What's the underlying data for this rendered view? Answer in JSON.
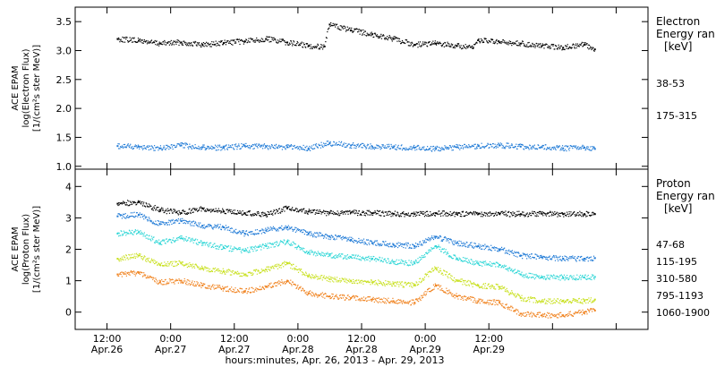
{
  "chart_data": [
    {
      "type": "scatter",
      "panel": "electron",
      "ylabel_lines": [
        "ACE EPAM",
        "log(Electron Flux)",
        "[1/(cm²s ster MeV)]"
      ],
      "ylim": [
        0.95,
        3.75
      ],
      "yticks": [
        1.0,
        1.5,
        2.0,
        2.5,
        3.0,
        3.5
      ],
      "yticklabels": [
        "1.0",
        "1.5",
        "2.0",
        "2.5",
        "3.0",
        "3.5"
      ],
      "legend": {
        "title_lines": [
          "Electron",
          "Energy ran",
          "[keV]"
        ],
        "placement": "right"
      },
      "series": [
        {
          "name": "38-53",
          "color": "#000000",
          "x": [
            8,
            12,
            16,
            20,
            24,
            28,
            32,
            36,
            40,
            44,
            47,
            48,
            52,
            56,
            60,
            64,
            68,
            72,
            75,
            76,
            80,
            84,
            88,
            92,
            96,
            98
          ],
          "y": [
            3.2,
            3.17,
            3.12,
            3.14,
            3.1,
            3.13,
            3.16,
            3.2,
            3.14,
            3.08,
            3.07,
            3.45,
            3.35,
            3.28,
            3.2,
            3.1,
            3.12,
            3.08,
            3.04,
            3.18,
            3.14,
            3.12,
            3.08,
            3.05,
            3.1,
            3.02
          ]
        },
        {
          "name": "175-315",
          "color": "#1f7ad6",
          "x": [
            8,
            12,
            16,
            20,
            24,
            28,
            32,
            36,
            40,
            44,
            48,
            52,
            56,
            60,
            64,
            68,
            72,
            76,
            80,
            84,
            88,
            92,
            96,
            98
          ],
          "y": [
            1.35,
            1.34,
            1.31,
            1.36,
            1.33,
            1.32,
            1.35,
            1.34,
            1.33,
            1.31,
            1.4,
            1.36,
            1.34,
            1.33,
            1.32,
            1.3,
            1.33,
            1.35,
            1.36,
            1.34,
            1.33,
            1.31,
            1.32,
            1.3
          ]
        }
      ]
    },
    {
      "type": "scatter",
      "panel": "proton",
      "ylabel_lines": [
        "ACE EPAM",
        "log(Proton Flux)",
        "[1/(cm²s ster MeV)]"
      ],
      "ylim": [
        -0.55,
        4.55
      ],
      "yticks": [
        0,
        1,
        2,
        3,
        4
      ],
      "yticklabels": [
        "0",
        "1",
        "2",
        "3",
        "4"
      ],
      "legend": {
        "title_lines": [
          "Proton",
          "Energy ran",
          "[keV]"
        ],
        "placement": "right"
      },
      "series": [
        {
          "name": "47-68",
          "color": "#000000",
          "x": [
            8,
            12,
            16,
            20,
            24,
            28,
            32,
            36,
            40,
            44,
            48,
            52,
            56,
            60,
            64,
            68,
            72,
            76,
            80,
            84,
            88,
            92,
            96,
            98
          ],
          "y": [
            3.45,
            3.5,
            3.25,
            3.15,
            3.3,
            3.2,
            3.15,
            3.1,
            3.3,
            3.2,
            3.15,
            3.17,
            3.15,
            3.13,
            3.12,
            3.15,
            3.12,
            3.12,
            3.13,
            3.12,
            3.13,
            3.12,
            3.12,
            3.12
          ]
        },
        {
          "name": "115-195",
          "color": "#1f7ad6",
          "x": [
            8,
            12,
            16,
            20,
            24,
            28,
            32,
            36,
            40,
            44,
            48,
            52,
            56,
            60,
            64,
            68,
            72,
            76,
            80,
            84,
            88,
            92,
            96,
            98
          ],
          "y": [
            3.05,
            3.1,
            2.8,
            2.9,
            2.75,
            2.7,
            2.5,
            2.6,
            2.7,
            2.5,
            2.4,
            2.3,
            2.2,
            2.15,
            2.1,
            2.4,
            2.2,
            2.1,
            2.0,
            1.8,
            1.75,
            1.7,
            1.7,
            1.72
          ]
        },
        {
          "name": "310-580",
          "color": "#2ed6d6",
          "x": [
            8,
            12,
            16,
            20,
            24,
            28,
            32,
            36,
            40,
            44,
            48,
            52,
            56,
            60,
            64,
            68,
            72,
            76,
            80,
            84,
            88,
            92,
            96,
            98
          ],
          "y": [
            2.5,
            2.55,
            2.2,
            2.35,
            2.2,
            2.05,
            1.95,
            2.1,
            2.25,
            1.9,
            1.8,
            1.75,
            1.7,
            1.6,
            1.55,
            2.1,
            1.7,
            1.55,
            1.5,
            1.2,
            1.1,
            1.1,
            1.1,
            1.12
          ]
        },
        {
          "name": "795-1193",
          "color": "#c8e01e",
          "x": [
            8,
            12,
            16,
            20,
            24,
            28,
            32,
            36,
            40,
            44,
            48,
            52,
            56,
            60,
            64,
            68,
            72,
            76,
            80,
            84,
            88,
            92,
            96,
            98
          ],
          "y": [
            1.7,
            1.8,
            1.5,
            1.55,
            1.4,
            1.3,
            1.2,
            1.35,
            1.55,
            1.15,
            1.05,
            1.0,
            0.95,
            0.9,
            0.85,
            1.4,
            1.0,
            0.85,
            0.8,
            0.45,
            0.35,
            0.35,
            0.35,
            0.4
          ]
        },
        {
          "name": "1060-1900",
          "color": "#f0821e",
          "x": [
            8,
            12,
            16,
            20,
            24,
            28,
            32,
            36,
            40,
            44,
            48,
            52,
            56,
            60,
            64,
            68,
            72,
            76,
            80,
            84,
            88,
            92,
            96,
            98
          ],
          "y": [
            1.2,
            1.25,
            0.95,
            1.0,
            0.85,
            0.75,
            0.65,
            0.8,
            1.0,
            0.6,
            0.5,
            0.45,
            0.4,
            0.35,
            0.3,
            0.85,
            0.5,
            0.35,
            0.3,
            -0.05,
            -0.1,
            -0.1,
            0.0,
            0.05
          ]
        }
      ]
    }
  ],
  "x_axis": {
    "xlim": [
      0,
      108
    ],
    "ticks": [
      6,
      18,
      30,
      42,
      54,
      66,
      78,
      90,
      102
    ],
    "tick_labels": [
      [
        "12:00",
        "Apr.26"
      ],
      [
        "0:00",
        "Apr.27"
      ],
      [
        "12:00",
        "Apr.27"
      ],
      [
        "0:00",
        "Apr.28"
      ],
      [
        "12:00",
        "Apr.28"
      ],
      [
        "0:00",
        "Apr.29"
      ],
      [
        "12:00",
        "Apr.29"
      ]
    ],
    "labeled_ticks": [
      6,
      18,
      30,
      42,
      54,
      66,
      78
    ],
    "label": "hours:minutes, Apr. 26, 2013 - Apr. 29, 2013"
  }
}
